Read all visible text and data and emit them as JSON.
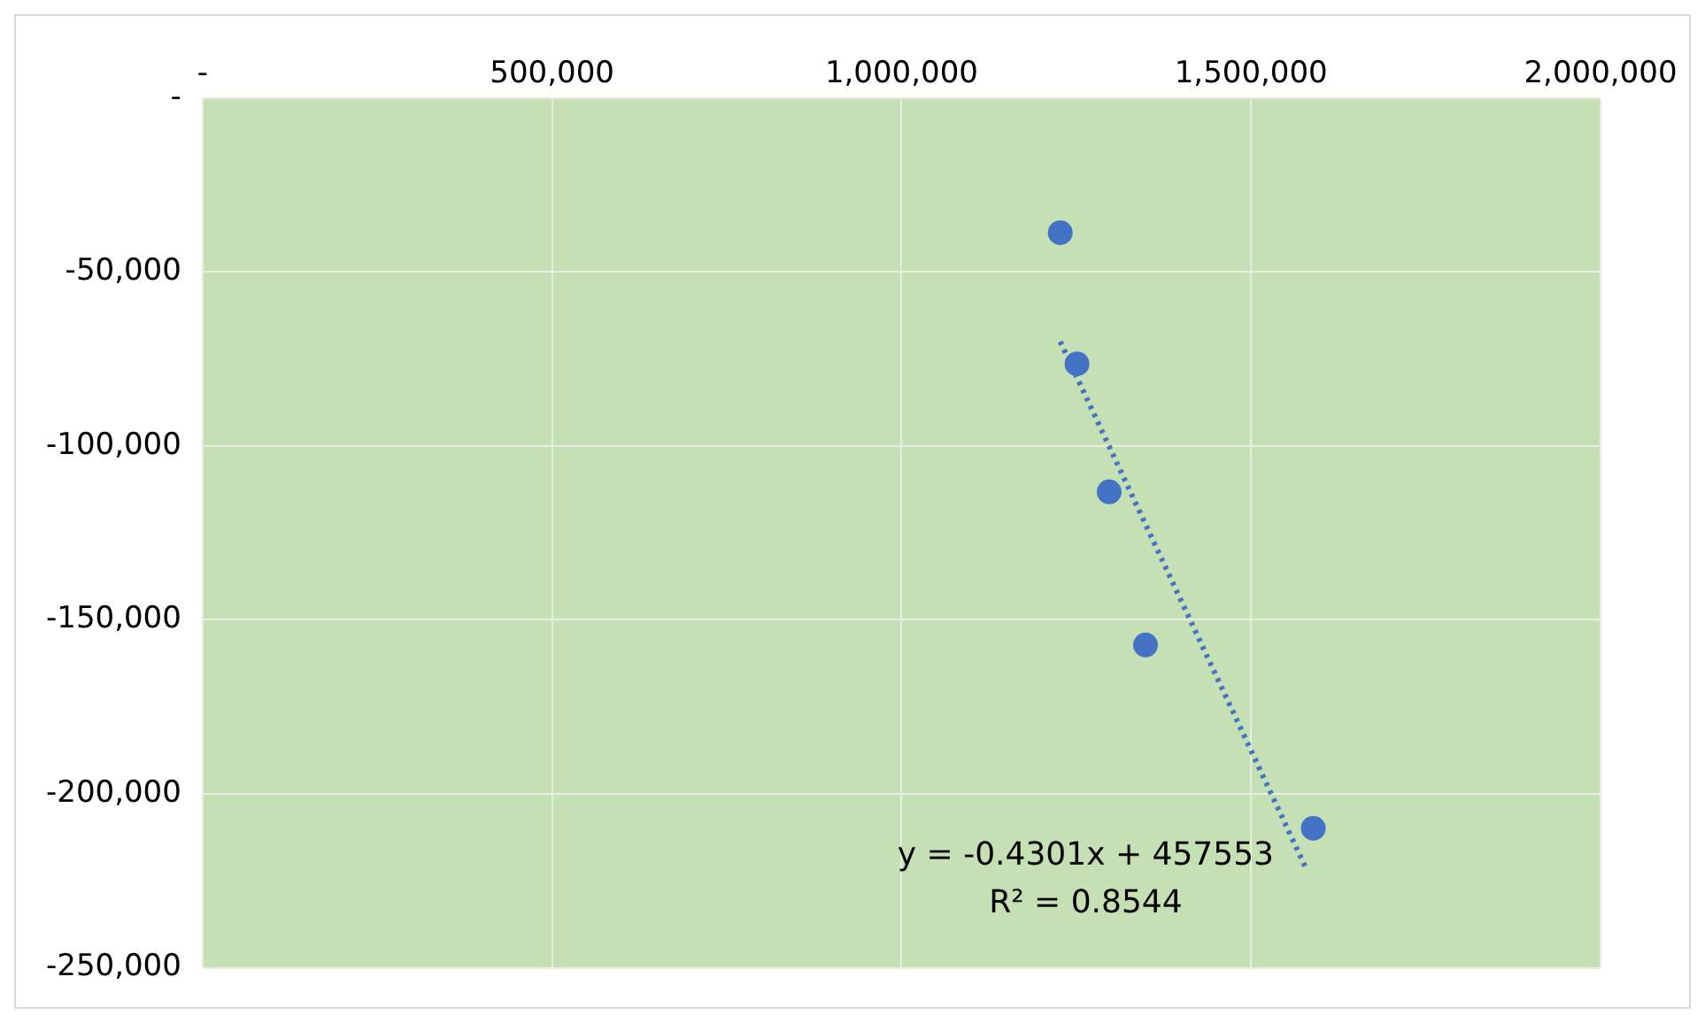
{
  "chart_data": {
    "type": "scatter",
    "xlim": [
      0,
      2000000
    ],
    "ylim": [
      -250000,
      0
    ],
    "xticks": [
      {
        "value": 0,
        "label": "-"
      },
      {
        "value": 500000,
        "label": "500,000"
      },
      {
        "value": 1000000,
        "label": "1,000,000"
      },
      {
        "value": 1500000,
        "label": "1,500,000"
      },
      {
        "value": 2000000,
        "label": "2,000,000"
      }
    ],
    "yticks": [
      {
        "value": 0,
        "label": "-"
      },
      {
        "value": -50000,
        "label": "-50,000"
      },
      {
        "value": -100000,
        "label": "-100,000"
      },
      {
        "value": -150000,
        "label": "-150,000"
      },
      {
        "value": -200000,
        "label": "-200,000"
      },
      {
        "value": -250000,
        "label": "-250,000"
      }
    ],
    "series": [
      {
        "type": "scatter",
        "color": "#4472c4",
        "marker": "circle",
        "x": [
          1227000,
          1251000,
          1297000,
          1349000,
          1589000
        ],
        "values": [
          -38700,
          -76400,
          -113200,
          -157200,
          -209900
        ]
      },
      {
        "type": "line",
        "color": "#4472c4",
        "line_style": "dotted",
        "marker": "none",
        "x": [
          1227000,
          1580000
        ],
        "values": [
          -70000,
          -222000
        ]
      }
    ],
    "annotations": [
      "y = -0.4301x + 457553",
      "R² = 0.8544"
    ],
    "grid": true,
    "legend": false
  }
}
